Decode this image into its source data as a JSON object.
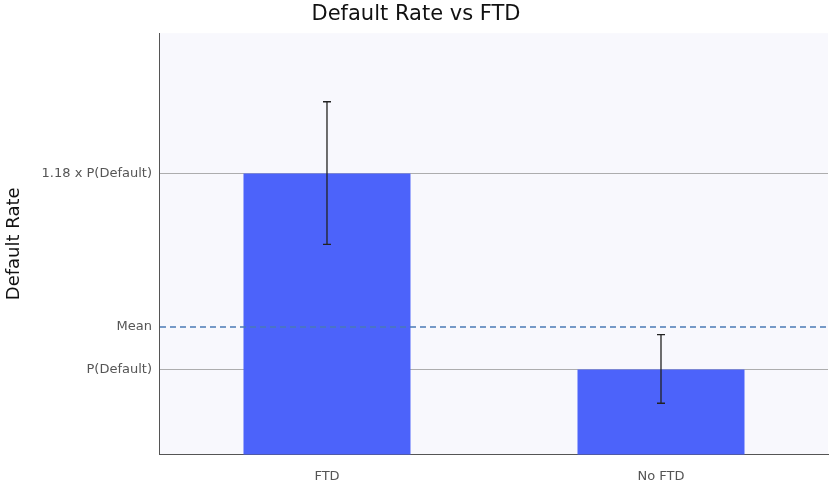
{
  "chart_data": {
    "type": "bar",
    "title": "Default Rate vs FTD",
    "y_label": "Default Rate",
    "categories": [
      "FTD",
      "No FTD"
    ],
    "values": [
      1.18,
      1.0
    ],
    "error_low": [
      1.115,
      0.969
    ],
    "error_high": [
      1.246,
      1.032
    ],
    "mean": 1.039,
    "color": "#4c63fa",
    "ylim": [
      0.922,
      1.309
    ],
    "yticks": [
      {
        "value": 1.0,
        "label": "P(Default)"
      },
      {
        "value": 1.039,
        "label": "Mean"
      },
      {
        "value": 1.18,
        "label": "1.18 x P(Default)"
      }
    ],
    "grid": true
  }
}
